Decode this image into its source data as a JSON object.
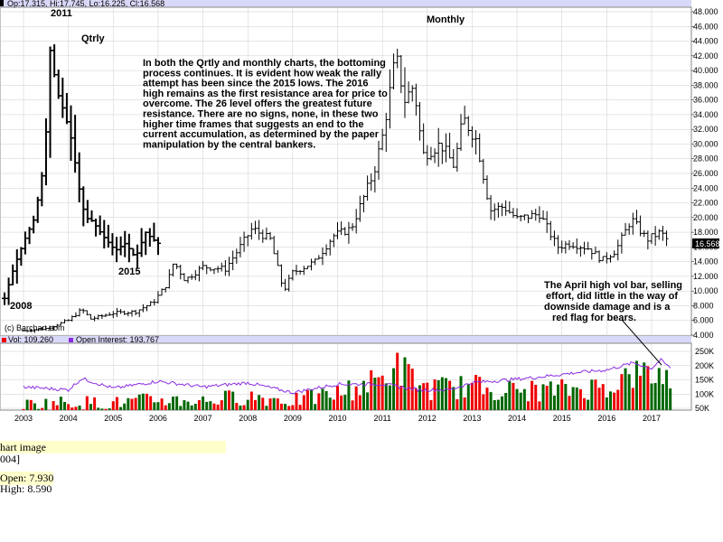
{
  "header": {
    "ohlc": "Op:17.315, Hi:17.745, Lo:16.225, Cl:16.568",
    "vol_label": "Vol: 109,260",
    "oi_label": "Open Interest: 193,767",
    "copyright": "(c) Barchart.com",
    "last_price": "16.568"
  },
  "labels": {
    "qtrly": "Qtrly",
    "monthly": "Monthly",
    "y2011": "2011",
    "y2015": "2015",
    "y2008": "2008"
  },
  "annotation_main": [
    "In both the Qrtly and monthly charts, the bottoming",
    "process continues.  It is evident how weak the rally",
    "attempt has been since the 2015 lows.  The 2016",
    "high remains as the first resistance area for price to",
    "overcome.  The 26 level offers the greatest future",
    "resistance.  There are no signs, none, in these two",
    "higher time frames that suggests an end to the",
    "current accumulation, as determined by the paper",
    "manipulation by the central bankers."
  ],
  "annotation_vol": [
    "The April high vol bar, selling",
    "effort, did little in the way of",
    "downside damage and is a",
    "red flag for bears."
  ],
  "tooltip": {
    "line1": "hart image",
    "line2": "004]",
    "line3": "Open: 7.930",
    "line4": "High: 8.590"
  },
  "colors": {
    "header_bg": "#d8d8f8",
    "bar": "#000000",
    "vol_up": "#006600",
    "vol_down": "#ee0000",
    "oi_line": "#8a2be2",
    "grid": "#cccccc"
  },
  "chart_data": [
    {
      "type": "ohlc",
      "title": "Monthly",
      "xlabel": "",
      "ylabel": "",
      "ylim": [
        4,
        49
      ],
      "yticks": [
        "48.000",
        "46.000",
        "44.000",
        "42.000",
        "40.000",
        "38.000",
        "36.000",
        "34.000",
        "32.000",
        "30.000",
        "28.000",
        "26.000",
        "24.000",
        "22.000",
        "20.000",
        "18.000",
        "16.000",
        "14.000",
        "12.000",
        "10.000",
        "8.000",
        "6.000",
        "4.000"
      ],
      "x_labels": [
        "2003",
        "2004",
        "2005",
        "2006",
        "2007",
        "2008",
        "2009",
        "2010",
        "2011",
        "2012",
        "2013",
        "2014",
        "2015",
        "2016",
        "2017"
      ],
      "grid": true,
      "series": [
        {
          "year": 2003.0,
          "price": 4.6
        },
        {
          "year": 2003.5,
          "price": 4.9
        },
        {
          "year": 2004.0,
          "price": 6.0
        },
        {
          "year": 2004.3,
          "price": 7.5
        },
        {
          "year": 2004.5,
          "price": 6.2
        },
        {
          "year": 2005.0,
          "price": 7.0
        },
        {
          "year": 2005.5,
          "price": 7.2
        },
        {
          "year": 2005.9,
          "price": 8.5
        },
        {
          "year": 2006.2,
          "price": 11.0
        },
        {
          "year": 2006.35,
          "price": 14.0
        },
        {
          "year": 2006.6,
          "price": 11.5
        },
        {
          "year": 2007.0,
          "price": 13.3
        },
        {
          "year": 2007.5,
          "price": 13.0
        },
        {
          "year": 2008.1,
          "price": 18.5
        },
        {
          "year": 2008.5,
          "price": 17.0
        },
        {
          "year": 2008.8,
          "price": 10.0
        },
        {
          "year": 2009.0,
          "price": 12.5
        },
        {
          "year": 2009.5,
          "price": 14.0
        },
        {
          "year": 2009.9,
          "price": 17.5
        },
        {
          "year": 2010.3,
          "price": 18.5
        },
        {
          "year": 2010.8,
          "price": 26.0
        },
        {
          "year": 2011.0,
          "price": 31.0
        },
        {
          "year": 2011.3,
          "price": 42.0
        },
        {
          "year": 2011.5,
          "price": 36.0
        },
        {
          "year": 2011.7,
          "price": 38.0
        },
        {
          "year": 2011.9,
          "price": 28.5
        },
        {
          "year": 2012.3,
          "price": 30.0
        },
        {
          "year": 2012.6,
          "price": 27.0
        },
        {
          "year": 2012.8,
          "price": 33.5
        },
        {
          "year": 2013.1,
          "price": 30.5
        },
        {
          "year": 2013.4,
          "price": 21.0
        },
        {
          "year": 2013.7,
          "price": 21.5
        },
        {
          "year": 2014.0,
          "price": 19.8
        },
        {
          "year": 2014.5,
          "price": 20.5
        },
        {
          "year": 2014.9,
          "price": 16.0
        },
        {
          "year": 2015.2,
          "price": 16.5
        },
        {
          "year": 2015.6,
          "price": 15.8
        },
        {
          "year": 2015.9,
          "price": 14.2
        },
        {
          "year": 2016.2,
          "price": 15.5
        },
        {
          "year": 2016.55,
          "price": 19.8
        },
        {
          "year": 2016.9,
          "price": 17.0
        },
        {
          "year": 2017.2,
          "price": 18.0
        },
        {
          "year": 2017.4,
          "price": 16.6
        }
      ],
      "qtrly_series": [
        {
          "year": 2003.0,
          "price": 9
        },
        {
          "year": 2003.2,
          "price": 13.5
        },
        {
          "year": 2003.4,
          "price": 17
        },
        {
          "year": 2003.6,
          "price": 20
        },
        {
          "year": 2003.8,
          "price": 28
        },
        {
          "year": 2003.9,
          "price": 43
        },
        {
          "year": 2004.05,
          "price": 37
        },
        {
          "year": 2004.2,
          "price": 34
        },
        {
          "year": 2004.35,
          "price": 30
        },
        {
          "year": 2004.45,
          "price": 25
        },
        {
          "year": 2004.6,
          "price": 20
        },
        {
          "year": 2004.75,
          "price": 19.5
        },
        {
          "year": 2004.95,
          "price": 17.5
        },
        {
          "year": 2005.2,
          "price": 15.5
        },
        {
          "year": 2005.4,
          "price": 16.5
        },
        {
          "year": 2005.6,
          "price": 14.5
        },
        {
          "year": 2005.8,
          "price": 18
        },
        {
          "year": 2005.95,
          "price": 17
        },
        {
          "year": 2006.05,
          "price": 16.5
        }
      ]
    },
    {
      "type": "bar",
      "title": "",
      "xlabel": "",
      "ylabel": "",
      "ylim": [
        50000,
        260000
      ],
      "yticks": [
        "250K",
        "200K",
        "150K",
        "100K",
        "50K"
      ],
      "series": [
        {
          "name": "Vol: 109,260",
          "values": "monthly volume bars"
        },
        {
          "name": "Open Interest: 193,767",
          "type": "line"
        }
      ],
      "vol_samples": [
        {
          "year": 2003.0,
          "vol": 75000
        },
        {
          "year": 2004.0,
          "vol": 85000
        },
        {
          "year": 2005.0,
          "vol": 80000
        },
        {
          "year": 2006.0,
          "vol": 95000
        },
        {
          "year": 2007.0,
          "vol": 90000
        },
        {
          "year": 2008.0,
          "vol": 110000
        },
        {
          "year": 2009.0,
          "vol": 90000
        },
        {
          "year": 2010.0,
          "vol": 120000
        },
        {
          "year": 2011.0,
          "vol": 180000
        },
        {
          "year": 2011.3,
          "vol": 235000
        },
        {
          "year": 2012.0,
          "vol": 140000
        },
        {
          "year": 2013.0,
          "vol": 150000
        },
        {
          "year": 2014.0,
          "vol": 130000
        },
        {
          "year": 2015.0,
          "vol": 135000
        },
        {
          "year": 2016.0,
          "vol": 150000
        },
        {
          "year": 2016.6,
          "vol": 200000
        },
        {
          "year": 2017.3,
          "vol": 195000
        }
      ],
      "oi_samples": [
        {
          "year": 2003.0,
          "oi": 125000
        },
        {
          "year": 2004.0,
          "oi": 115000
        },
        {
          "year": 2004.3,
          "oi": 155000
        },
        {
          "year": 2005.0,
          "oi": 120000
        },
        {
          "year": 2006.0,
          "oi": 145000
        },
        {
          "year": 2007.0,
          "oi": 125000
        },
        {
          "year": 2008.0,
          "oi": 140000
        },
        {
          "year": 2009.0,
          "oi": 105000
        },
        {
          "year": 2010.0,
          "oi": 135000
        },
        {
          "year": 2011.0,
          "oi": 135000
        },
        {
          "year": 2011.8,
          "oi": 115000
        },
        {
          "year": 2012.5,
          "oi": 115000
        },
        {
          "year": 2013.0,
          "oi": 140000
        },
        {
          "year": 2013.8,
          "oi": 150000
        },
        {
          "year": 2014.5,
          "oi": 160000
        },
        {
          "year": 2015.3,
          "oi": 175000
        },
        {
          "year": 2016.0,
          "oi": 185000
        },
        {
          "year": 2016.6,
          "oi": 210000
        },
        {
          "year": 2017.0,
          "oi": 190000
        },
        {
          "year": 2017.2,
          "oi": 220000
        },
        {
          "year": 2017.4,
          "oi": 194000
        }
      ]
    }
  ]
}
